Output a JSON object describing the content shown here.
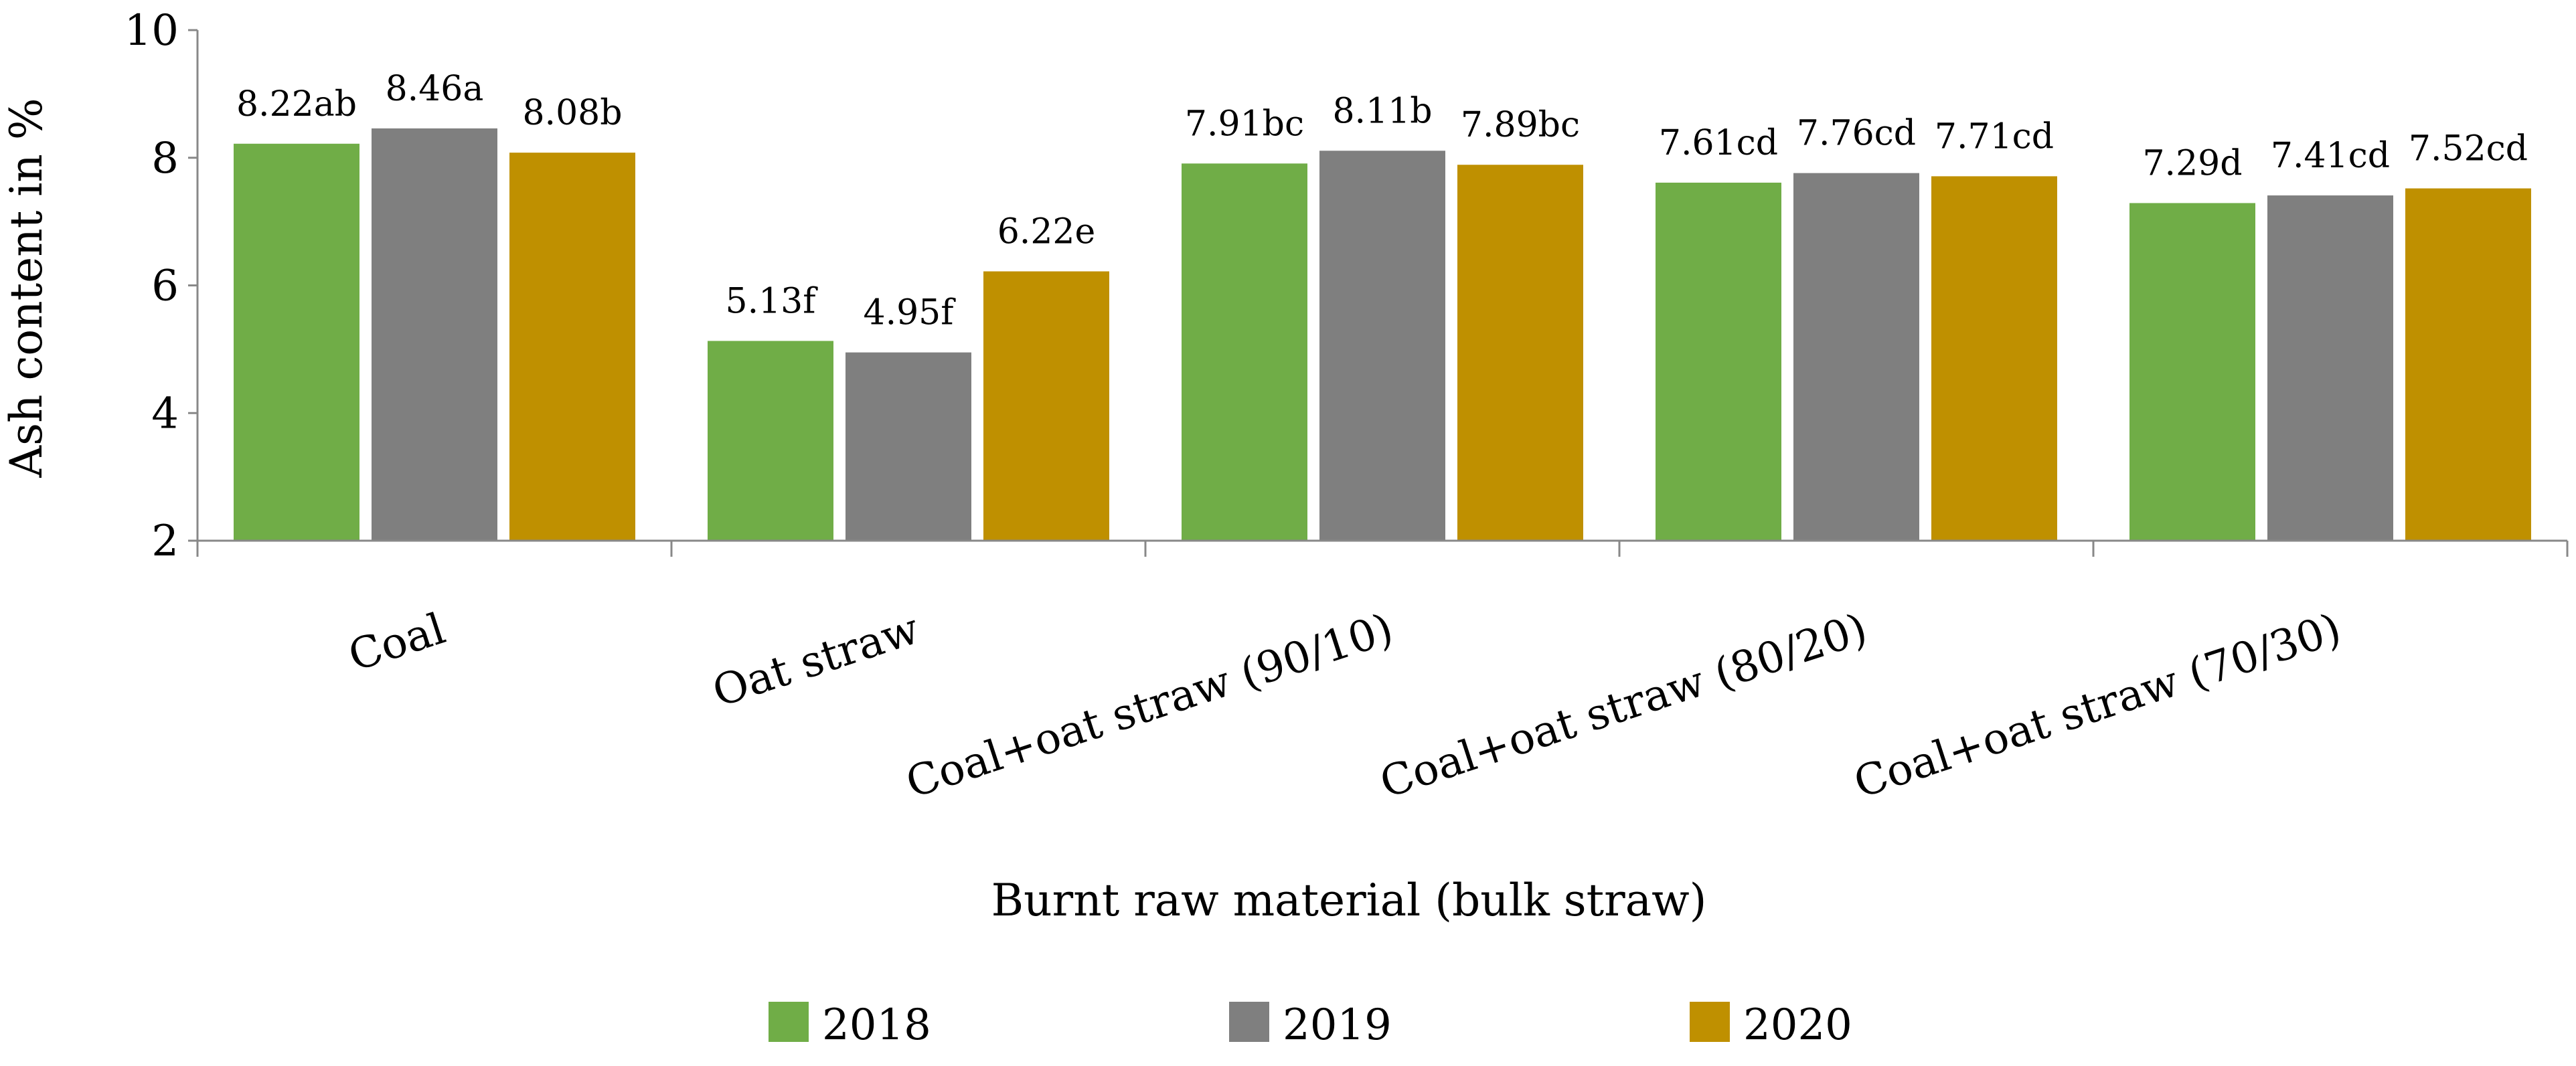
{
  "chart_data": {
    "type": "bar",
    "title": "",
    "xlabel": "Burnt raw material (bulk straw)",
    "ylabel": "Ash content in %",
    "ylim": [
      2,
      10
    ],
    "yticks": [
      "2",
      "4",
      "6",
      "8",
      "10"
    ],
    "categories": [
      "Coal",
      "Oat straw",
      "Coal+oat straw (90/10)",
      "Coal+oat straw (80/20)",
      "Coal+oat straw (70/30)"
    ],
    "series": [
      {
        "name": "2018",
        "color": "#70AD47",
        "values": [
          8.22,
          5.13,
          7.91,
          7.61,
          7.29
        ],
        "labels": [
          "8.22ab",
          "5.13f",
          "7.91bc",
          "7.61cd",
          "7.29d"
        ]
      },
      {
        "name": "2019",
        "color": "#7F7F7F",
        "values": [
          8.46,
          4.95,
          8.11,
          7.76,
          7.41
        ],
        "labels": [
          "8.46a",
          "4.95f",
          "8.11b",
          "7.76cd",
          "7.41cd"
        ]
      },
      {
        "name": "2020",
        "color": "#BF9000",
        "values": [
          8.08,
          6.22,
          7.89,
          7.71,
          7.52
        ],
        "labels": [
          "8.08b",
          "6.22e",
          "7.89bc",
          "7.71cd",
          "7.52cd"
        ]
      }
    ],
    "legend_position": "bottom",
    "grid": false
  }
}
